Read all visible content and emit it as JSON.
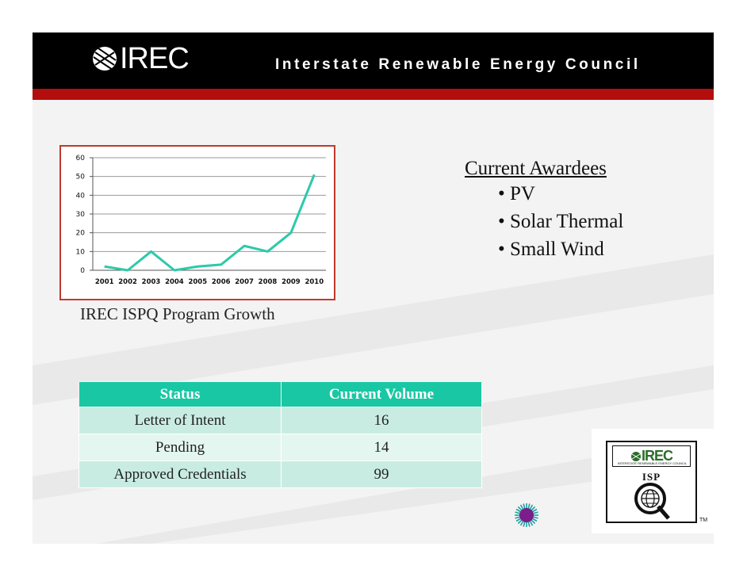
{
  "header": {
    "logo_text": "IREC",
    "org_name": "Interstate Renewable Energy Council"
  },
  "chart": {
    "caption": "IREC ISPQ Program Growth"
  },
  "chart_data": {
    "type": "line",
    "title": "",
    "xlabel": "",
    "ylabel": "",
    "x": [
      "2001",
      "2002",
      "2003",
      "2004",
      "2005",
      "2006",
      "2007",
      "2008",
      "2009",
      "2010"
    ],
    "series": [
      {
        "values": [
          2,
          0,
          10,
          0,
          2,
          3,
          13,
          10,
          20,
          51
        ]
      }
    ],
    "ylim": [
      0,
      60
    ],
    "yticks": [
      "0",
      "10",
      "20",
      "30",
      "40",
      "50",
      "60"
    ],
    "grid": true,
    "line_color": "#2bcaa8"
  },
  "awardees": {
    "title": "Current Awardees",
    "items": [
      "PV",
      "Solar Thermal",
      "Small Wind"
    ]
  },
  "status_table": {
    "headers": [
      "Status",
      "Current Volume"
    ],
    "rows": [
      [
        "Letter of Intent",
        "16"
      ],
      [
        "Pending",
        "14"
      ],
      [
        "Approved Credentials",
        "99"
      ]
    ]
  },
  "badge": {
    "logo_text": "IREC",
    "subtitle": "INTERSTATE RENEWABLE ENERGY COUNCIL",
    "isp_text": "ISP",
    "tm": "TM"
  },
  "colors": {
    "header": "#000000",
    "header_stripe": "#b40d0d",
    "table_header": "#19c7a4",
    "chart_border": "#c0392b"
  }
}
